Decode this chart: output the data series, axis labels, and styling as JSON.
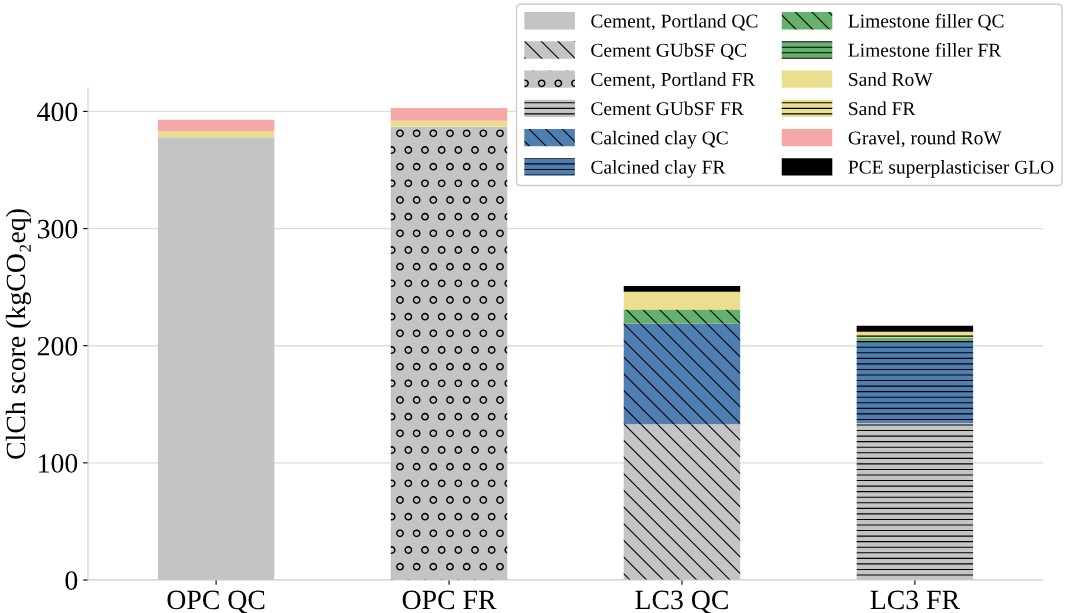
{
  "chart_data": {
    "type": "bar",
    "stacked": true,
    "ylabel": "ClCh score (kgCO₂eq)",
    "categories": [
      "OPC QC",
      "OPC FR",
      "LC3 QC",
      "LC3 FR"
    ],
    "ylim": [
      0,
      420
    ],
    "yticks": [
      0,
      100,
      200,
      300,
      400
    ],
    "grid": "y",
    "legend": "top right",
    "series": [
      {
        "name": "Cement, Portland QC",
        "color": "#c4c4c4",
        "values": [
          378,
          null,
          null,
          null
        ]
      },
      {
        "name": "Cement GUbSF QC",
        "color": "#c4c4c4",
        "values": [
          null,
          null,
          133,
          null
        ]
      },
      {
        "name": "Cement, Portland FR",
        "color": "#c4c4c4",
        "values": [
          null,
          387,
          null,
          null
        ]
      },
      {
        "name": "Cement GUbSF FR",
        "color": "#c4c4c4",
        "values": [
          null,
          null,
          null,
          134
        ]
      },
      {
        "name": "Calcined clay QC",
        "color": "#4f7fb0",
        "values": [
          null,
          null,
          86,
          null
        ]
      },
      {
        "name": "Calcined clay FR",
        "color": "#4f7fb0",
        "values": [
          null,
          null,
          null,
          70
        ]
      },
      {
        "name": "Limestone filler QC",
        "color": "#66b06e",
        "values": [
          null,
          null,
          12,
          null
        ]
      },
      {
        "name": "Limestone filler FR",
        "color": "#66b06e",
        "values": [
          null,
          null,
          null,
          3
        ]
      },
      {
        "name": "Sand RoW",
        "color": "#ebdf8f",
        "values": [
          5,
          5,
          15,
          null
        ]
      },
      {
        "name": "Sand FR",
        "color": "#ebdf8f",
        "values": [
          null,
          null,
          null,
          5
        ]
      },
      {
        "name": "Gravel, round RoW",
        "color": "#f4a9a6",
        "values": [
          10,
          11,
          null,
          null
        ]
      },
      {
        "name": "PCE superplasticiser GLO",
        "color": "#000000",
        "values": [
          null,
          null,
          5,
          5
        ]
      }
    ]
  }
}
